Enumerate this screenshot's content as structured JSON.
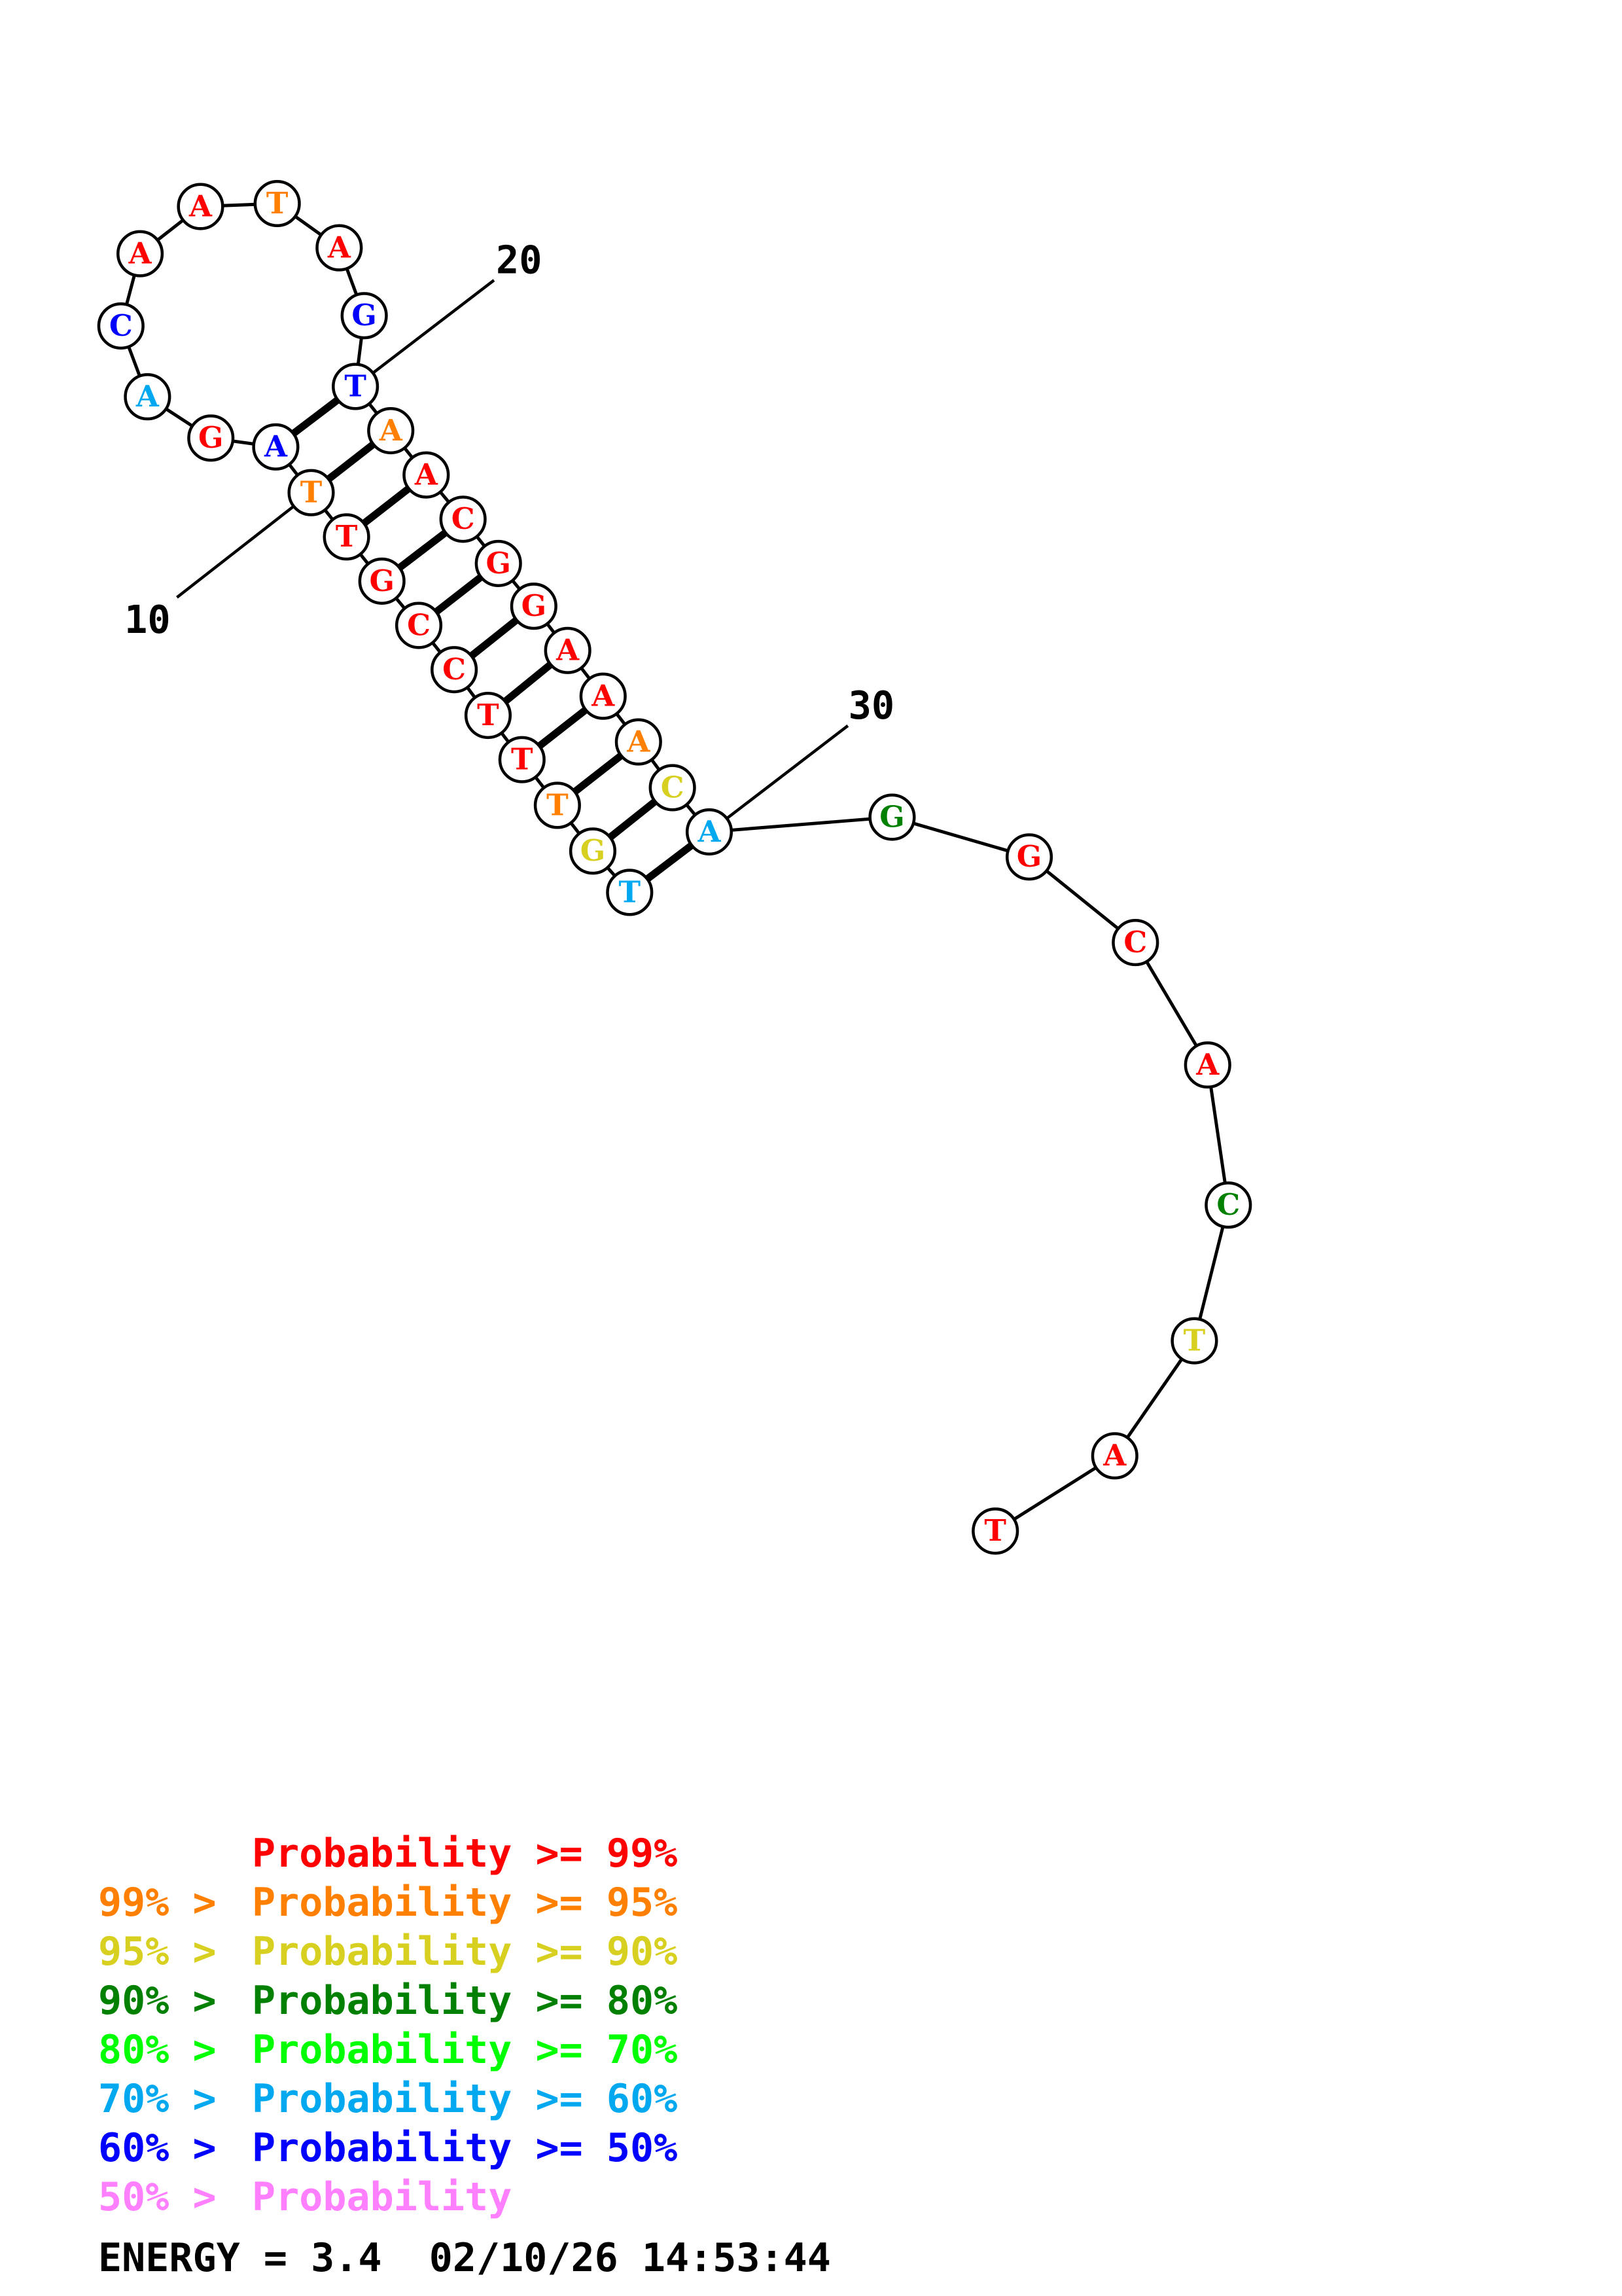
{
  "bases": [
    {
      "n": 1,
      "letter": "T",
      "color": "#00a8f0"
    },
    {
      "n": 2,
      "letter": "G",
      "color": "#d8d020"
    },
    {
      "n": 3,
      "letter": "T",
      "color": "#ff8000"
    },
    {
      "n": 4,
      "letter": "T",
      "color": "#ff0000"
    },
    {
      "n": 5,
      "letter": "T",
      "color": "#ff0000"
    },
    {
      "n": 6,
      "letter": "C",
      "color": "#ff0000"
    },
    {
      "n": 7,
      "letter": "C",
      "color": "#ff0000"
    },
    {
      "n": 8,
      "letter": "G",
      "color": "#ff0000"
    },
    {
      "n": 9,
      "letter": "T",
      "color": "#ff0000"
    },
    {
      "n": 10,
      "letter": "T",
      "color": "#ff8000"
    },
    {
      "n": 11,
      "letter": "A",
      "color": "#0000ff"
    },
    {
      "n": 12,
      "letter": "G",
      "color": "#ff0000"
    },
    {
      "n": 13,
      "letter": "A",
      "color": "#00a8f0"
    },
    {
      "n": 14,
      "letter": "C",
      "color": "#0000ff"
    },
    {
      "n": 15,
      "letter": "A",
      "color": "#ff0000"
    },
    {
      "n": 16,
      "letter": "A",
      "color": "#ff0000"
    },
    {
      "n": 17,
      "letter": "T",
      "color": "#ff8000"
    },
    {
      "n": 18,
      "letter": "A",
      "color": "#ff0000"
    },
    {
      "n": 19,
      "letter": "G",
      "color": "#0000ff"
    },
    {
      "n": 20,
      "letter": "T",
      "color": "#0000ff"
    },
    {
      "n": 21,
      "letter": "A",
      "color": "#ff8000"
    },
    {
      "n": 22,
      "letter": "A",
      "color": "#ff0000"
    },
    {
      "n": 23,
      "letter": "C",
      "color": "#ff0000"
    },
    {
      "n": 24,
      "letter": "G",
      "color": "#ff0000"
    },
    {
      "n": 25,
      "letter": "G",
      "color": "#ff0000"
    },
    {
      "n": 26,
      "letter": "A",
      "color": "#ff0000"
    },
    {
      "n": 27,
      "letter": "A",
      "color": "#ff0000"
    },
    {
      "n": 28,
      "letter": "A",
      "color": "#ff8000"
    },
    {
      "n": 29,
      "letter": "C",
      "color": "#d8d020"
    },
    {
      "n": 30,
      "letter": "A",
      "color": "#00a8f0"
    },
    {
      "n": 31,
      "letter": "G",
      "color": "#008000"
    },
    {
      "n": 32,
      "letter": "G",
      "color": "#ff0000"
    },
    {
      "n": 33,
      "letter": "C",
      "color": "#ff0000"
    },
    {
      "n": 34,
      "letter": "A",
      "color": "#ff0000"
    },
    {
      "n": 35,
      "letter": "C",
      "color": "#008000"
    },
    {
      "n": 36,
      "letter": "T",
      "color": "#d8d020"
    },
    {
      "n": 37,
      "letter": "A",
      "color": "#ff0000"
    },
    {
      "n": 38,
      "letter": "T",
      "color": "#ff0000"
    }
  ],
  "pairs": [
    [
      1,
      30
    ],
    [
      2,
      29
    ],
    [
      3,
      28
    ],
    [
      4,
      27
    ],
    [
      5,
      26
    ],
    [
      6,
      25
    ],
    [
      7,
      24
    ],
    [
      8,
      23
    ],
    [
      9,
      22
    ],
    [
      10,
      21
    ],
    [
      11,
      20
    ]
  ],
  "position_labels": [
    {
      "n": 10,
      "text": "10"
    },
    {
      "n": 20,
      "text": "20"
    },
    {
      "n": 30,
      "text": "30"
    }
  ],
  "legend": [
    {
      "lower": "",
      "upper": "Probability >= 99%",
      "color": "#ff0000"
    },
    {
      "lower": "99% >",
      "upper": "Probability >= 95%",
      "color": "#ff8000"
    },
    {
      "lower": "95% >",
      "upper": "Probability >= 90%",
      "color": "#d8d020"
    },
    {
      "lower": "90% >",
      "upper": "Probability >= 80%",
      "color": "#008000"
    },
    {
      "lower": "80% >",
      "upper": "Probability >= 70%",
      "color": "#00ff00"
    },
    {
      "lower": "70% >",
      "upper": "Probability >= 60%",
      "color": "#00a8f0"
    },
    {
      "lower": "60% >",
      "upper": "Probability >= 50%",
      "color": "#0000ff"
    },
    {
      "lower": "50% >",
      "upper": "Probability",
      "color": "#ff80ff"
    }
  ],
  "footer": "ENERGY = 3.4  02/10/26 14:53:44"
}
